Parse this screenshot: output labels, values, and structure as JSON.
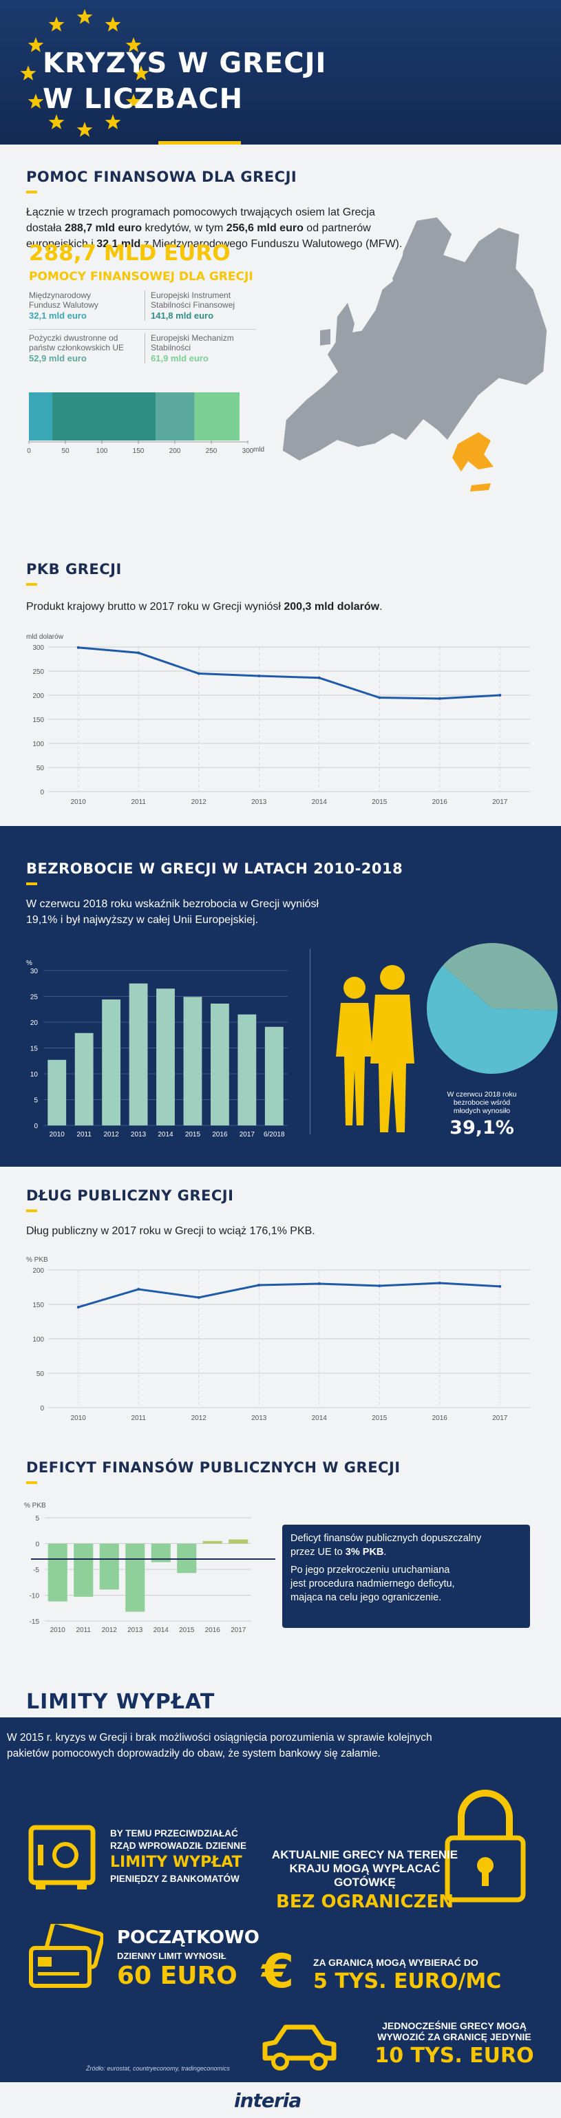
{
  "header": {
    "title_line1": "KRYZYS W GRECJI",
    "title_line2": "W LICZBACH"
  },
  "aid": {
    "heading": "POMOC FINANSOWA DLA GRECJI",
    "text1": "Łącznie w trzech programach pomocowych trwających osiem lat Grecja",
    "text2a": "dostała ",
    "text2b": "288,7 mld euro",
    "text2c": " kredytów, w tym ",
    "text2d": "256,6 mld euro",
    "text2e": " od partnerów",
    "text3a": "europejskich i ",
    "text3b": "32,1 mld",
    "text3c": " z Międzynarodowego Funduszu Walutowego (MFW).",
    "total": "288,7 MLD EURO",
    "total_sub": "POMOCY FINANSOWEJ DLA GRECJI",
    "items": [
      {
        "label1": "Międzynarodowy",
        "label2": "Fundusz Walutowy",
        "value": "32,1 mld euro",
        "color": "#3aa7b6"
      },
      {
        "label1": "Europejski Instrument",
        "label2": "Stabilności Finansowej",
        "value": "141,8 mld euro",
        "color": "#2f8f84"
      },
      {
        "label1": "Pożyczki dwustronne od",
        "label2": "państw członkowskich UE",
        "value": "52,9 mld euro",
        "color": "#5aa99c"
      },
      {
        "label1": "Europejski Mechanizm",
        "label2": "Stabilności",
        "value": "61,9 mld euro",
        "color": "#7ccf95"
      }
    ],
    "bar_ticks": [
      "0",
      "50",
      "100",
      "150",
      "200",
      "250",
      "300"
    ],
    "bar_unit1": "mld",
    "bar_unit2": "euro"
  },
  "gdp": {
    "heading": "PKB GRECJI",
    "text_a": "Produkt krajowy brutto w 2017 roku w Grecji wyniósł ",
    "text_b": "200,3 mld dolarów",
    "text_c": "."
  },
  "unemp": {
    "heading": "BEZROBOCIE W GRECJI W LATACH 2010-2018",
    "text1": "W czerwcu 2018 roku wskaźnik bezrobocia w Grecji wyniósł",
    "text2": "19,1% i był najwyższy w całej Unii Europejskiej.",
    "pie_l1": "W czerwcu 2018 roku",
    "pie_l2": "bezrobocie wśród",
    "pie_l3": "młodych wynosiło",
    "pie_value": "39,1%"
  },
  "debt": {
    "heading": "DŁUG PUBLICZNY GRECJI",
    "text": "Dług publiczny w 2017 roku w Grecji to wciąż 176,1% PKB."
  },
  "deficit": {
    "heading": "DEFICYT FINANSÓW PUBLICZNYCH W GRECJI",
    "box1": "Deficyt finansów publicznych dopuszczalny",
    "box2a": "przez UE to ",
    "box2b": "3% PKB",
    "box2c": ".",
    "box3": "Po jego przekroczeniu uruchamiana",
    "box4": "jest procedura nadmiernego deficytu,",
    "box5": "mająca na celu jego ograniczenie."
  },
  "limits": {
    "heading": "LIMITY WYPŁAT",
    "text1": "W 2015 r. kryzys w Grecji i brak możliwości osiągnięcia porozumienia w sprawie kolejnych",
    "text2": "pakietów pomocowych doprowadziły do obaw, że system bankowy się załamie.",
    "safe1": "BY TEMU PRZECIWDZIAŁAĆ",
    "safe2": "RZĄD WPROWADZIŁ DZIENNE",
    "safe3": "LIMITY WYPŁAT",
    "safe4": "PIENIĘDZY Z BANKOMATÓW",
    "card1": "POCZĄTKOWO",
    "card2": "DZIENNY LIMIT WYNOSIŁ",
    "card3": "60 EURO",
    "lock1": "AKTUALNIE GRECY NA TERENIE",
    "lock2": "KRAJU MOGĄ WYPŁACAĆ GOTÓWKĘ",
    "lock3": "BEZ OGRANICZEŃ",
    "euro1": "ZA GRANICĄ MOGĄ WYBIERAĆ DO",
    "euro2": "5 TYS. EURO/MC",
    "car1": "JEDNOCZEŚNIE GRECY MOGĄ",
    "car2": "WYWOZIĆ ZA GRANICĘ JEDYNIE",
    "car3": "10 TYS. EURO",
    "source": "Źródło: eurostat, countryeconomy, tradingeconomics"
  },
  "footer": {
    "logo": "interia"
  },
  "chart_data": [
    {
      "type": "bar",
      "title": "",
      "orientation": "horizontal-stacked",
      "xlim": [
        0,
        300
      ],
      "xlabel": "mld euro",
      "series": [
        {
          "name": "Międzynarodowy Fundusz Walutowy",
          "values": [
            32.1
          ]
        },
        {
          "name": "Europejski Instrument Stabilności Finansowej",
          "values": [
            141.8
          ]
        },
        {
          "name": "Pożyczki dwustronne od państw członkowskich UE",
          "values": [
            52.9
          ]
        },
        {
          "name": "Europejski Mechanizm Stabilności",
          "values": [
            61.9
          ]
        }
      ]
    },
    {
      "type": "line",
      "ylabel": "mld dolarów",
      "x": [
        "2010",
        "2011",
        "2012",
        "2013",
        "2014",
        "2015",
        "2016",
        "2017"
      ],
      "values": [
        299,
        288,
        245,
        240,
        236,
        195,
        193,
        200
      ],
      "ylim": [
        0,
        300
      ],
      "yticks": [
        0,
        50,
        100,
        150,
        200,
        250,
        300
      ]
    },
    {
      "type": "bar",
      "ylabel": "%",
      "categories": [
        "2010",
        "2011",
        "2012",
        "2013",
        "2014",
        "2015",
        "2016",
        "2017",
        "6/2018"
      ],
      "values": [
        12.7,
        17.9,
        24.4,
        27.5,
        26.5,
        24.9,
        23.6,
        21.5,
        19.1
      ],
      "ylim": [
        0,
        30
      ],
      "yticks": [
        0,
        5,
        10,
        15,
        20,
        25,
        30
      ]
    },
    {
      "type": "pie",
      "categories": [
        "bezrobotni",
        "pozostali"
      ],
      "values": [
        39.1,
        60.9
      ],
      "colors": [
        "#7fb3a8",
        "#59bfd0"
      ]
    },
    {
      "type": "line",
      "ylabel": "% PKB",
      "x": [
        "2010",
        "2011",
        "2012",
        "2013",
        "2014",
        "2015",
        "2016",
        "2017"
      ],
      "values": [
        146,
        172,
        160,
        178,
        180,
        177,
        181,
        176.1
      ],
      "ylim": [
        0,
        200
      ],
      "yticks": [
        0,
        50,
        100,
        150,
        200
      ]
    },
    {
      "type": "bar",
      "ylabel": "% PKB",
      "categories": [
        "2010",
        "2011",
        "2012",
        "2013",
        "2014",
        "2015",
        "2016",
        "2017"
      ],
      "values": [
        -11.2,
        -10.3,
        -8.9,
        -13.2,
        -3.6,
        -5.7,
        0.5,
        0.8
      ],
      "ylim": [
        -15,
        5
      ],
      "yticks": [
        5,
        0,
        -5,
        -10,
        -15
      ],
      "reference_line": -3
    }
  ]
}
